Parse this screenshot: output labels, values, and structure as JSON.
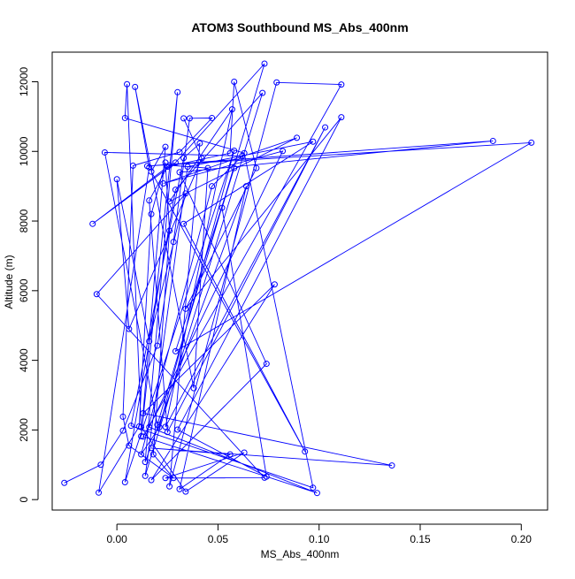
{
  "chart_data": {
    "type": "line",
    "title": "ATOM3 Southbound MS_Abs_400nm",
    "xlabel": "MS_Abs_400nm",
    "ylabel": "Altitude (m)",
    "xlim": [
      -0.032,
      0.213
    ],
    "ylim": [
      -300,
      12850
    ],
    "x_ticks": [
      0.0,
      0.05,
      0.1,
      0.15,
      0.2
    ],
    "x_tick_labels": [
      "0.00",
      "0.05",
      "0.10",
      "0.15",
      "0.20"
    ],
    "y_ticks": [
      0,
      2000,
      4000,
      6000,
      8000,
      10000,
      12000
    ],
    "y_tick_labels": [
      "0",
      "2000",
      "4000",
      "6000",
      "8000",
      "10000",
      "12000"
    ],
    "series": [
      {
        "style": "line+open-circle-markers",
        "color": "#0000ff",
        "points": [
          [
            -0.026,
            480
          ],
          [
            -0.008,
            1000
          ],
          [
            0.003,
            1980
          ],
          [
            0.02,
            4420
          ],
          [
            0.028,
            7400
          ],
          [
            0.036,
            10950
          ],
          [
            0.047,
            10960
          ],
          [
            0.031,
            9980
          ],
          [
            0.008,
            9590
          ],
          [
            0.003,
            2380
          ],
          [
            0.006,
            1550
          ],
          [
            0.028,
            620
          ],
          [
            0.018,
            1300
          ],
          [
            0.026,
            7720
          ],
          [
            0.024,
            9680
          ],
          [
            0.017,
            8200
          ],
          [
            0.011,
            2100
          ],
          [
            -0.009,
            200
          ],
          [
            0.016,
            9540
          ],
          [
            0.009,
            11850
          ],
          [
            0.038,
            3200
          ],
          [
            0.045,
            9520
          ],
          [
            0.026,
            9600
          ],
          [
            -0.012,
            7920
          ],
          [
            0.029,
            9680
          ],
          [
            0.073,
            12520
          ],
          [
            0.02,
            2150
          ],
          [
            -0.006,
            9970
          ],
          [
            0.062,
            9870
          ],
          [
            0.047,
            9000
          ],
          [
            0.012,
            1300
          ],
          [
            0.021,
            2080
          ],
          [
            0.058,
            10020
          ],
          [
            0.004,
            500
          ],
          [
            0.029,
            8900
          ],
          [
            0.072,
            11680
          ],
          [
            0.014,
            680
          ],
          [
            0.035,
            9560
          ],
          [
            0.097,
            10280
          ],
          [
            0.033,
            7920
          ],
          [
            0.093,
            1380
          ],
          [
            0.017,
            9420
          ],
          [
            0.024,
            10130
          ],
          [
            0.012,
            1820
          ],
          [
            0.03,
            11700
          ],
          [
            0.014,
            1080
          ],
          [
            0.064,
            9000
          ],
          [
            0.031,
            300
          ],
          [
            0.056,
            1300
          ],
          [
            0.017,
            1480
          ],
          [
            0.136,
            980
          ],
          [
            0.013,
            2480
          ],
          [
            0.078,
            6180
          ],
          [
            0.017,
            560
          ],
          [
            0.074,
            3900
          ],
          [
            0.031,
            9400
          ],
          [
            0.186,
            10300
          ],
          [
            0.015,
            9580
          ],
          [
            0.205,
            10250
          ],
          [
            0.029,
            4260
          ],
          [
            0.058,
            9520
          ],
          [
            0.052,
            8380
          ],
          [
            0.074,
            660
          ],
          [
            0.03,
            2010
          ],
          [
            0.111,
            10980
          ],
          [
            0.034,
            5480
          ],
          [
            0.069,
            9520
          ],
          [
            0.058,
            12000
          ],
          [
            0.056,
            9950
          ],
          [
            0.025,
            9560
          ],
          [
            0.016,
            8590
          ],
          [
            0.025,
            1940
          ],
          [
            0.103,
            10690
          ],
          [
            0.024,
            2090
          ],
          [
            0.057,
            11210
          ],
          [
            0.026,
            8560
          ],
          [
            0.089,
            10390
          ],
          [
            0.023,
            9080
          ],
          [
            0.082,
            10010
          ],
          [
            0.016,
            2080
          ],
          [
            0.099,
            190
          ],
          [
            0.013,
            1810
          ],
          [
            0.111,
            11920
          ],
          [
            0.079,
            11980
          ],
          [
            0.026,
            380
          ],
          [
            0.041,
            10230
          ],
          [
            0.033,
            9810
          ],
          [
            0.007,
            2120
          ],
          [
            0.097,
            340
          ],
          [
            0.063,
            9950
          ],
          [
            0.004,
            10960
          ],
          [
            0.005,
            11930
          ],
          [
            0.012,
            2080
          ],
          [
            0.034,
            230
          ],
          [
            0.063,
            1350
          ],
          [
            0.024,
            620
          ],
          [
            0.073,
            630
          ],
          [
            -0.01,
            5900
          ],
          [
            0.034,
            8790
          ],
          [
            0.016,
            4550
          ],
          [
            0.0,
            9200
          ],
          [
            0.006,
            4900
          ],
          [
            0.042,
            9800
          ],
          [
            0.033,
            10950
          ]
        ]
      }
    ],
    "grid": false,
    "legend": "none"
  }
}
